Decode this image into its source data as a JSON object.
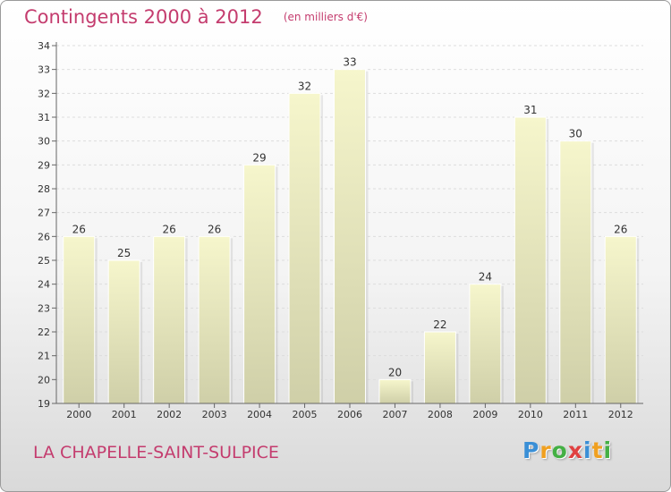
{
  "chart_data": {
    "type": "bar",
    "title": "Contingents 2000 à 2012",
    "subtitle": "(en milliers d'€)",
    "categories": [
      "2000",
      "2001",
      "2002",
      "2003",
      "2004",
      "2005",
      "2006",
      "2007",
      "2008",
      "2009",
      "2010",
      "2011",
      "2012"
    ],
    "values": [
      26,
      25,
      26,
      26,
      29,
      32,
      33,
      20,
      22,
      24,
      31,
      30,
      26
    ],
    "ylim": [
      19,
      34
    ],
    "yticks": [
      19,
      20,
      21,
      22,
      23,
      24,
      25,
      26,
      27,
      28,
      29,
      30,
      31,
      32,
      33,
      34
    ],
    "grid": true,
    "bar_color": "#f6f6cc",
    "bar_color_bottom": "#cfcfa8"
  },
  "footer": {
    "commune": "LA CHAPELLE-SAINT-SULPICE"
  },
  "logo": {
    "letters": [
      "P",
      "r",
      "o",
      "x",
      "i",
      "t",
      "i"
    ],
    "colors": [
      "#3a8fd6",
      "#f0a020",
      "#44b044",
      "#e04040",
      "#3a8fd6",
      "#f0a020",
      "#44b044"
    ]
  }
}
